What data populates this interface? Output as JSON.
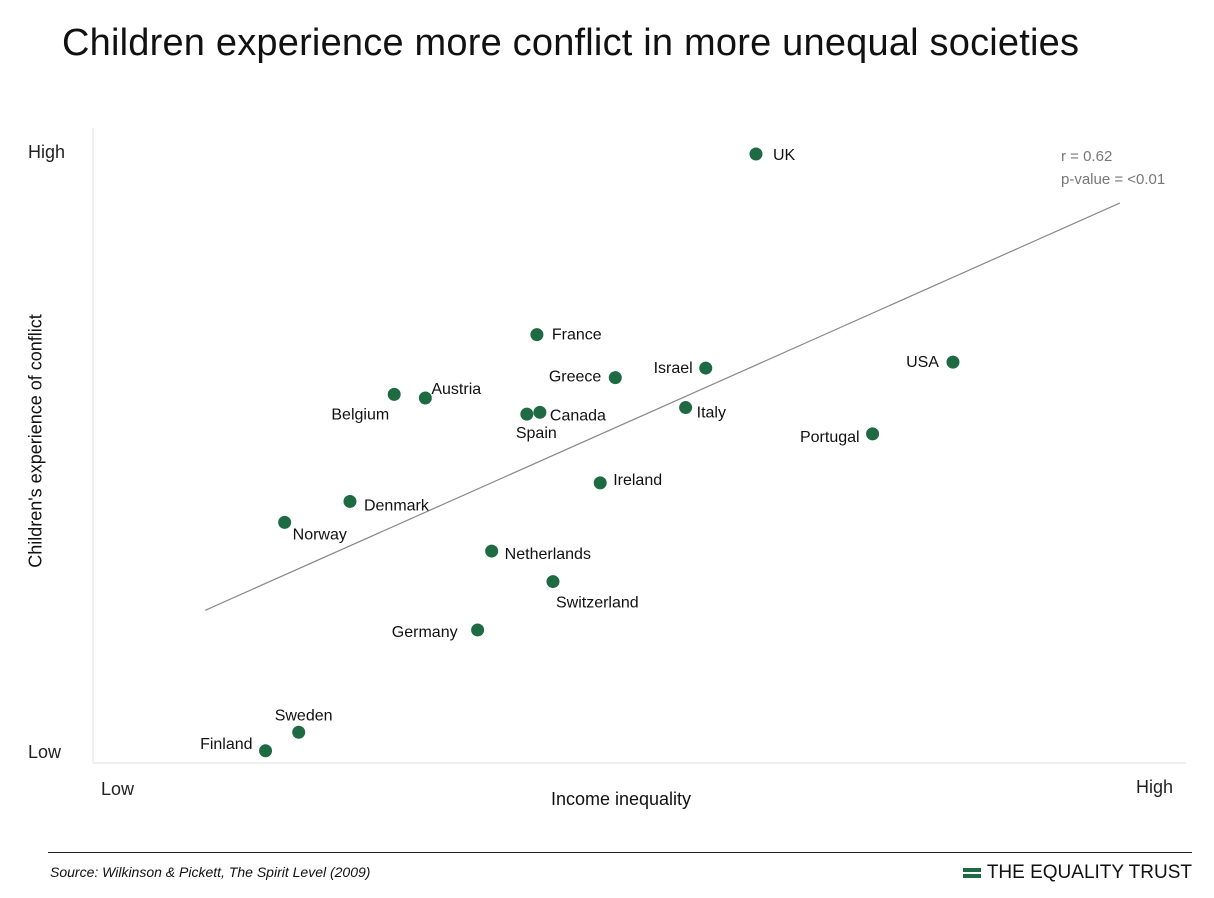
{
  "title": "Children experience more conflict in more unequal societies",
  "footer": {
    "source": "Source: Wilkinson & Pickett, The Spirit Level (2009)",
    "brand": "THE EQUALITY TRUST"
  },
  "chart_data": {
    "type": "scatter",
    "xlabel": "Income inequality",
    "ylabel": "Children's experience of conflict",
    "x_tick_labels": [
      "Low",
      "High"
    ],
    "y_tick_labels": [
      "Low",
      "High"
    ],
    "xlim": [
      0,
      100
    ],
    "ylim": [
      0,
      100
    ],
    "grid": false,
    "marker_color": "#1e6b43",
    "trend_line": {
      "x": [
        5,
        96
      ],
      "y": [
        23.7,
        91.8
      ],
      "color": "#888888"
    },
    "annotations": {
      "r": "r = 0.62",
      "p": "p-value = <0.01"
    },
    "points": [
      {
        "label": "UK",
        "x": 59.8,
        "y": 100.0
      },
      {
        "label": "France",
        "x": 38.0,
        "y": 69.8
      },
      {
        "label": "Israel",
        "x": 54.8,
        "y": 64.2
      },
      {
        "label": "USA",
        "x": 79.4,
        "y": 65.2
      },
      {
        "label": "Greece",
        "x": 45.8,
        "y": 62.6
      },
      {
        "label": "Austria",
        "x": 26.9,
        "y": 59.2
      },
      {
        "label": "Belgium",
        "x": 23.8,
        "y": 59.8
      },
      {
        "label": "Canada",
        "x": 38.3,
        "y": 56.8
      },
      {
        "label": "Spain",
        "x": 37.0,
        "y": 56.5
      },
      {
        "label": "Italy",
        "x": 52.8,
        "y": 57.6
      },
      {
        "label": "Portugal",
        "x": 71.4,
        "y": 53.2
      },
      {
        "label": "Ireland",
        "x": 44.3,
        "y": 45.0
      },
      {
        "label": "Denmark",
        "x": 19.4,
        "y": 41.9
      },
      {
        "label": "Norway",
        "x": 12.9,
        "y": 38.4
      },
      {
        "label": "Netherlands",
        "x": 33.5,
        "y": 33.6
      },
      {
        "label": "Switzerland",
        "x": 39.6,
        "y": 28.5
      },
      {
        "label": "Germany",
        "x": 32.1,
        "y": 20.4
      },
      {
        "label": "Sweden",
        "x": 14.3,
        "y": 3.3
      },
      {
        "label": "Finland",
        "x": 11.0,
        "y": 0.2
      }
    ]
  }
}
